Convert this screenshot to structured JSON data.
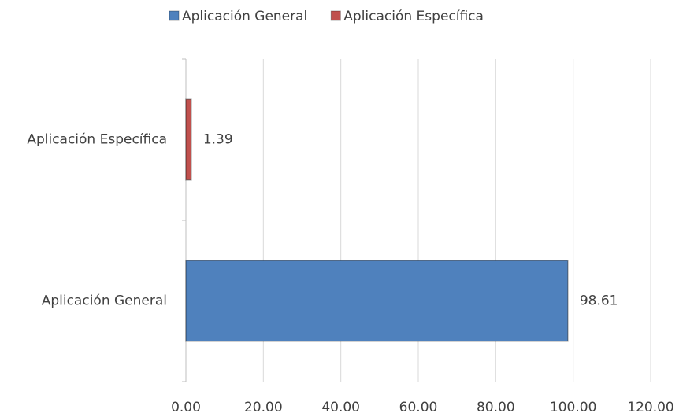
{
  "chart_data": {
    "type": "hbar",
    "categories": [
      "Aplicación General",
      "Aplicación Específica"
    ],
    "series": [
      {
        "name": "Aplicación General",
        "color": "#4f81bd",
        "values": [
          98.61,
          null
        ]
      },
      {
        "name": "Aplicación Específica",
        "color": "#c0504d",
        "values": [
          null,
          1.39
        ]
      }
    ],
    "xlim": [
      0,
      120
    ],
    "xticks": [
      {
        "value": 0,
        "label": "0.00"
      },
      {
        "value": 20,
        "label": "20.00"
      },
      {
        "value": 40,
        "label": "40.00"
      },
      {
        "value": 60,
        "label": "60.00"
      },
      {
        "value": 80,
        "label": "80.00"
      },
      {
        "value": 100,
        "label": "100.00"
      },
      {
        "value": 120,
        "label": "120.00"
      }
    ],
    "grid": true,
    "legend": "top"
  }
}
